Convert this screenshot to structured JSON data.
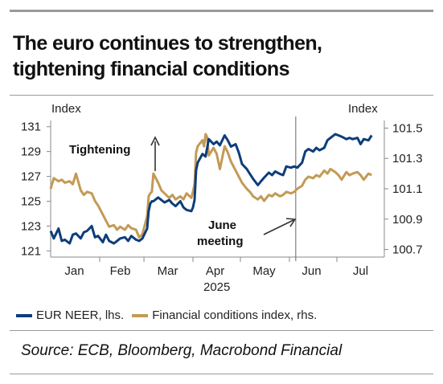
{
  "title_lines": [
    "The euro continues to strengthen,",
    "tightening financial conditions"
  ],
  "source": "Source: ECB, Bloomberg, Macrobond Financial",
  "colors": {
    "neer": "#0d3d7a",
    "fci": "#c39a55",
    "text": "#1a1a1a",
    "divider": "#9a9a9a"
  },
  "chart_data": {
    "type": "line",
    "left_axis": {
      "label": "Index",
      "range": [
        120.5,
        131.5
      ],
      "ticks": [
        121,
        123,
        125,
        127,
        129,
        131
      ]
    },
    "right_axis": {
      "label": "Index",
      "range": [
        100.65,
        101.55
      ],
      "ticks": [
        "100.7",
        "100.9",
        "101.1",
        "101.3",
        "101.5"
      ]
    },
    "x_axis": {
      "range": [
        "2025-01-01",
        "2025-07-31"
      ],
      "month_labels": [
        "Jan",
        "Feb",
        "Mar",
        "Apr",
        "May",
        "Jun",
        "Jul"
      ],
      "year_label": "2025"
    },
    "vline_date": "2025-06-05",
    "annotations": {
      "tightening": "Tightening",
      "june_line1": "June",
      "june_line2": "meeting"
    },
    "series": [
      {
        "name": "EUR NEER, lhs.",
        "axis": "left",
        "points": [
          [
            "2025-01-01",
            122.6
          ],
          [
            "2025-01-03",
            122.0
          ],
          [
            "2025-01-06",
            122.8
          ],
          [
            "2025-01-08",
            121.8
          ],
          [
            "2025-01-10",
            121.9
          ],
          [
            "2025-01-13",
            121.6
          ],
          [
            "2025-01-15",
            122.3
          ],
          [
            "2025-01-17",
            122.4
          ],
          [
            "2025-01-20",
            122.0
          ],
          [
            "2025-01-22",
            122.5
          ],
          [
            "2025-01-24",
            122.6
          ],
          [
            "2025-01-27",
            123.0
          ],
          [
            "2025-01-29",
            122.1
          ],
          [
            "2025-01-31",
            122.2
          ],
          [
            "2025-02-03",
            121.7
          ],
          [
            "2025-02-05",
            122.3
          ],
          [
            "2025-02-07",
            121.8
          ],
          [
            "2025-02-10",
            121.6
          ],
          [
            "2025-02-12",
            121.8
          ],
          [
            "2025-02-14",
            122.0
          ],
          [
            "2025-02-17",
            122.1
          ],
          [
            "2025-02-19",
            121.8
          ],
          [
            "2025-02-21",
            122.2
          ],
          [
            "2025-02-24",
            121.9
          ],
          [
            "2025-02-26",
            121.8
          ],
          [
            "2025-02-28",
            122.0
          ],
          [
            "2025-03-03",
            122.8
          ],
          [
            "2025-03-04",
            124.2
          ],
          [
            "2025-03-05",
            124.8
          ],
          [
            "2025-03-06",
            125.0
          ],
          [
            "2025-03-07",
            125.0
          ],
          [
            "2025-03-10",
            125.3
          ],
          [
            "2025-03-12",
            125.1
          ],
          [
            "2025-03-14",
            124.9
          ],
          [
            "2025-03-17",
            125.1
          ],
          [
            "2025-03-19",
            124.8
          ],
          [
            "2025-03-21",
            124.6
          ],
          [
            "2025-03-24",
            125.0
          ],
          [
            "2025-03-26",
            124.5
          ],
          [
            "2025-03-28",
            124.3
          ],
          [
            "2025-03-31",
            124.2
          ],
          [
            "2025-04-01",
            124.5
          ],
          [
            "2025-04-02",
            125.1
          ],
          [
            "2025-04-03",
            127.5
          ],
          [
            "2025-04-04",
            128.1
          ],
          [
            "2025-04-07",
            128.8
          ],
          [
            "2025-04-09",
            128.6
          ],
          [
            "2025-04-11",
            130.0
          ],
          [
            "2025-04-14",
            129.6
          ],
          [
            "2025-04-16",
            129.8
          ],
          [
            "2025-04-18",
            129.5
          ],
          [
            "2025-04-21",
            130.3
          ],
          [
            "2025-04-23",
            129.9
          ],
          [
            "2025-04-25",
            129.4
          ],
          [
            "2025-04-28",
            129.6
          ],
          [
            "2025-04-30",
            128.9
          ],
          [
            "2025-05-02",
            128.0
          ],
          [
            "2025-05-05",
            127.6
          ],
          [
            "2025-05-07",
            127.2
          ],
          [
            "2025-05-09",
            126.8
          ],
          [
            "2025-05-12",
            126.3
          ],
          [
            "2025-05-14",
            126.6
          ],
          [
            "2025-05-16",
            126.9
          ],
          [
            "2025-05-19",
            127.3
          ],
          [
            "2025-05-21",
            127.1
          ],
          [
            "2025-05-23",
            127.4
          ],
          [
            "2025-05-26",
            127.2
          ],
          [
            "2025-05-28",
            127.1
          ],
          [
            "2025-05-30",
            127.8
          ],
          [
            "2025-06-02",
            127.7
          ],
          [
            "2025-06-04",
            127.8
          ],
          [
            "2025-06-06",
            127.7
          ],
          [
            "2025-06-09",
            128.1
          ],
          [
            "2025-06-11",
            129.0
          ],
          [
            "2025-06-13",
            129.2
          ],
          [
            "2025-06-16",
            129.0
          ],
          [
            "2025-06-18",
            129.3
          ],
          [
            "2025-06-20",
            129.1
          ],
          [
            "2025-06-23",
            129.3
          ],
          [
            "2025-06-25",
            129.9
          ],
          [
            "2025-06-27",
            130.1
          ],
          [
            "2025-06-30",
            130.4
          ],
          [
            "2025-07-02",
            130.3
          ],
          [
            "2025-07-04",
            130.2
          ],
          [
            "2025-07-07",
            130.0
          ],
          [
            "2025-07-09",
            130.1
          ],
          [
            "2025-07-11",
            130.0
          ],
          [
            "2025-07-14",
            130.1
          ],
          [
            "2025-07-16",
            129.6
          ],
          [
            "2025-07-18",
            130.0
          ],
          [
            "2025-07-21",
            129.9
          ],
          [
            "2025-07-23",
            130.3
          ]
        ]
      },
      {
        "name": "Financial conditions index, rhs.",
        "axis": "right",
        "points": [
          [
            "2025-01-01",
            101.1
          ],
          [
            "2025-01-03",
            101.17
          ],
          [
            "2025-01-06",
            101.15
          ],
          [
            "2025-01-08",
            101.16
          ],
          [
            "2025-01-10",
            101.14
          ],
          [
            "2025-01-13",
            101.15
          ],
          [
            "2025-01-15",
            101.13
          ],
          [
            "2025-01-17",
            101.2
          ],
          [
            "2025-01-20",
            101.09
          ],
          [
            "2025-01-22",
            101.06
          ],
          [
            "2025-01-24",
            101.08
          ],
          [
            "2025-01-27",
            101.07
          ],
          [
            "2025-01-29",
            101.02
          ],
          [
            "2025-01-31",
            100.99
          ],
          [
            "2025-02-03",
            100.93
          ],
          [
            "2025-02-05",
            100.89
          ],
          [
            "2025-02-07",
            100.85
          ],
          [
            "2025-02-10",
            100.86
          ],
          [
            "2025-02-12",
            100.83
          ],
          [
            "2025-02-14",
            100.85
          ],
          [
            "2025-02-17",
            100.83
          ],
          [
            "2025-02-19",
            100.86
          ],
          [
            "2025-02-21",
            100.84
          ],
          [
            "2025-02-24",
            100.83
          ],
          [
            "2025-02-26",
            100.78
          ],
          [
            "2025-02-28",
            100.8
          ],
          [
            "2025-03-03",
            100.92
          ],
          [
            "2025-03-04",
            101.05
          ],
          [
            "2025-03-05",
            101.07
          ],
          [
            "2025-03-06",
            101.08
          ],
          [
            "2025-03-07",
            101.2
          ],
          [
            "2025-03-10",
            101.14
          ],
          [
            "2025-03-12",
            101.09
          ],
          [
            "2025-03-14",
            101.07
          ],
          [
            "2025-03-17",
            101.04
          ],
          [
            "2025-03-19",
            101.06
          ],
          [
            "2025-03-21",
            101.03
          ],
          [
            "2025-03-24",
            101.05
          ],
          [
            "2025-03-26",
            101.03
          ],
          [
            "2025-03-28",
            101.07
          ],
          [
            "2025-03-31",
            101.04
          ],
          [
            "2025-04-01",
            101.08
          ],
          [
            "2025-04-02",
            101.13
          ],
          [
            "2025-04-03",
            101.34
          ],
          [
            "2025-04-04",
            101.38
          ],
          [
            "2025-04-07",
            101.42
          ],
          [
            "2025-04-08",
            101.38
          ],
          [
            "2025-04-09",
            101.46
          ],
          [
            "2025-04-10",
            101.44
          ],
          [
            "2025-04-11",
            101.32
          ],
          [
            "2025-04-14",
            101.37
          ],
          [
            "2025-04-16",
            101.33
          ],
          [
            "2025-04-18",
            101.23
          ],
          [
            "2025-04-21",
            101.38
          ],
          [
            "2025-04-23",
            101.34
          ],
          [
            "2025-04-25",
            101.28
          ],
          [
            "2025-04-28",
            101.22
          ],
          [
            "2025-04-30",
            101.18
          ],
          [
            "2025-05-02",
            101.14
          ],
          [
            "2025-05-05",
            101.1
          ],
          [
            "2025-05-07",
            101.08
          ],
          [
            "2025-05-09",
            101.05
          ],
          [
            "2025-05-12",
            101.03
          ],
          [
            "2025-05-14",
            101.05
          ],
          [
            "2025-05-16",
            101.02
          ],
          [
            "2025-05-19",
            101.06
          ],
          [
            "2025-05-21",
            101.05
          ],
          [
            "2025-05-23",
            101.07
          ],
          [
            "2025-05-26",
            101.05
          ],
          [
            "2025-05-28",
            101.06
          ],
          [
            "2025-05-30",
            101.08
          ],
          [
            "2025-06-02",
            101.07
          ],
          [
            "2025-06-04",
            101.08
          ],
          [
            "2025-06-06",
            101.1
          ],
          [
            "2025-06-09",
            101.12
          ],
          [
            "2025-06-11",
            101.16
          ],
          [
            "2025-06-13",
            101.18
          ],
          [
            "2025-06-16",
            101.17
          ],
          [
            "2025-06-18",
            101.19
          ],
          [
            "2025-06-20",
            101.18
          ],
          [
            "2025-06-23",
            101.22
          ],
          [
            "2025-06-25",
            101.2
          ],
          [
            "2025-06-27",
            101.23
          ],
          [
            "2025-06-30",
            101.21
          ],
          [
            "2025-07-02",
            101.19
          ],
          [
            "2025-07-04",
            101.16
          ],
          [
            "2025-07-07",
            101.21
          ],
          [
            "2025-07-09",
            101.19
          ],
          [
            "2025-07-11",
            101.2
          ],
          [
            "2025-07-14",
            101.21
          ],
          [
            "2025-07-16",
            101.19
          ],
          [
            "2025-07-18",
            101.16
          ],
          [
            "2025-07-21",
            101.2
          ],
          [
            "2025-07-23",
            101.19
          ]
        ]
      }
    ]
  }
}
